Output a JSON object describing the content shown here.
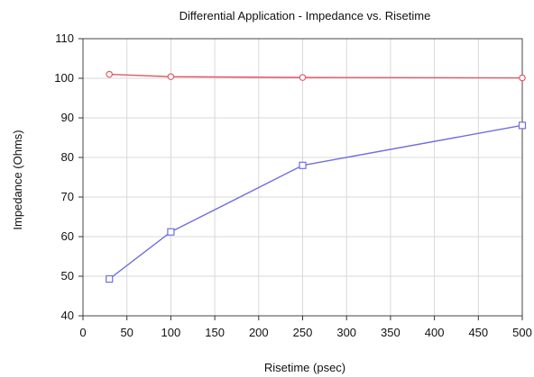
{
  "chart_data": {
    "type": "line",
    "title": "Differential Application - Impedance vs. Risetime",
    "xlabel": "Risetime (psec)",
    "ylabel": "Impedance (Ohms)",
    "xlim": [
      0,
      500
    ],
    "ylim": [
      40,
      110
    ],
    "xticks": [
      0,
      50,
      100,
      150,
      200,
      250,
      300,
      350,
      400,
      450,
      500
    ],
    "yticks": [
      40,
      50,
      60,
      70,
      80,
      90,
      100,
      110
    ],
    "grid": true,
    "legend": "none",
    "series": [
      {
        "color": "#e05a68",
        "marker": "circle",
        "points": [
          {
            "x": 30,
            "y": 101
          },
          {
            "x": 100,
            "y": 100.4
          },
          {
            "x": 250,
            "y": 100.2
          },
          {
            "x": 500,
            "y": 100.1
          }
        ]
      },
      {
        "color": "#6f6fe0",
        "marker": "square",
        "points": [
          {
            "x": 30,
            "y": 49.3
          },
          {
            "x": 100,
            "y": 61.2
          },
          {
            "x": 250,
            "y": 78
          },
          {
            "x": 500,
            "y": 88.1
          }
        ]
      }
    ]
  }
}
